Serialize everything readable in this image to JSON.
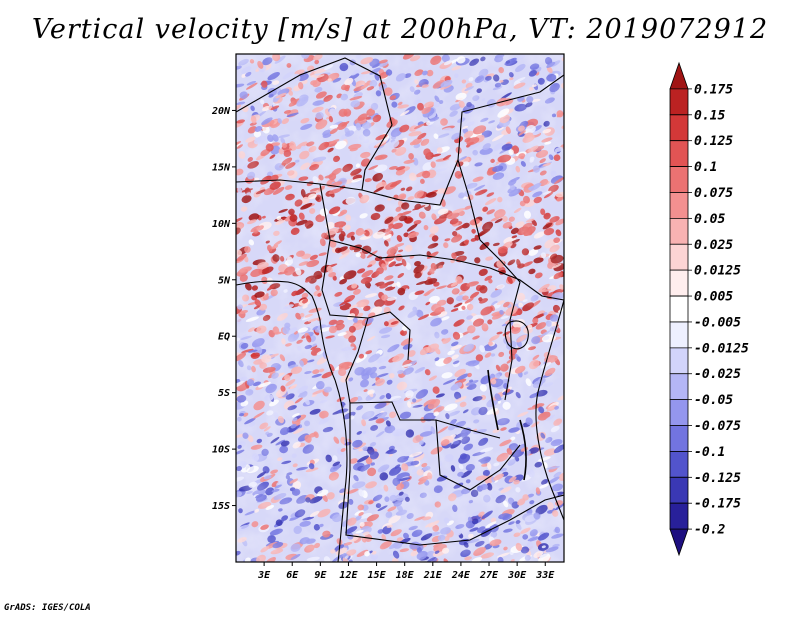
{
  "chart_data": {
    "type": "heatmap",
    "title": "Vertical velocity [m/s] at 200hPa, VT: 2019072912",
    "variable": "Vertical velocity",
    "units": "m/s",
    "level": "200hPa",
    "valid_time": "2019072912",
    "x_range": [
      0,
      35
    ],
    "y_range": [
      -20,
      25
    ],
    "x_ticks": [
      3,
      6,
      9,
      12,
      15,
      18,
      21,
      24,
      27,
      30,
      33
    ],
    "x_tick_labels": [
      "3E",
      "6E",
      "9E",
      "12E",
      "15E",
      "18E",
      "21E",
      "24E",
      "27E",
      "30E",
      "33E"
    ],
    "y_ticks": [
      20,
      15,
      10,
      5,
      0,
      -5,
      -10,
      -15
    ],
    "y_tick_labels": [
      "20N",
      "15N",
      "10N",
      "5N",
      "EQ",
      "5S",
      "10S",
      "15S"
    ],
    "colorbar_levels": [
      "0.175",
      "0.15",
      "0.125",
      "0.1",
      "0.075",
      "0.05",
      "0.025",
      "0.0125",
      "0.005",
      "-0.005",
      "-0.0125",
      "-0.025",
      "-0.05",
      "-0.075",
      "-0.1",
      "-0.125",
      "-0.175",
      "-0.2"
    ],
    "colorbar_colors": [
      "#a01414",
      "#bb2222",
      "#d33838",
      "#e25454",
      "#eb7272",
      "#f39090",
      "#f8b2b2",
      "#fcd4d4",
      "#ffeeee",
      "#ffffff",
      "#eef0ff",
      "#d2d4fb",
      "#b4b6f6",
      "#9496ee",
      "#7274e0",
      "#5254cc",
      "#3a38b4",
      "#28209a",
      "#1e0f80"
    ]
  },
  "credit": "GrADS: IGES/COLA"
}
